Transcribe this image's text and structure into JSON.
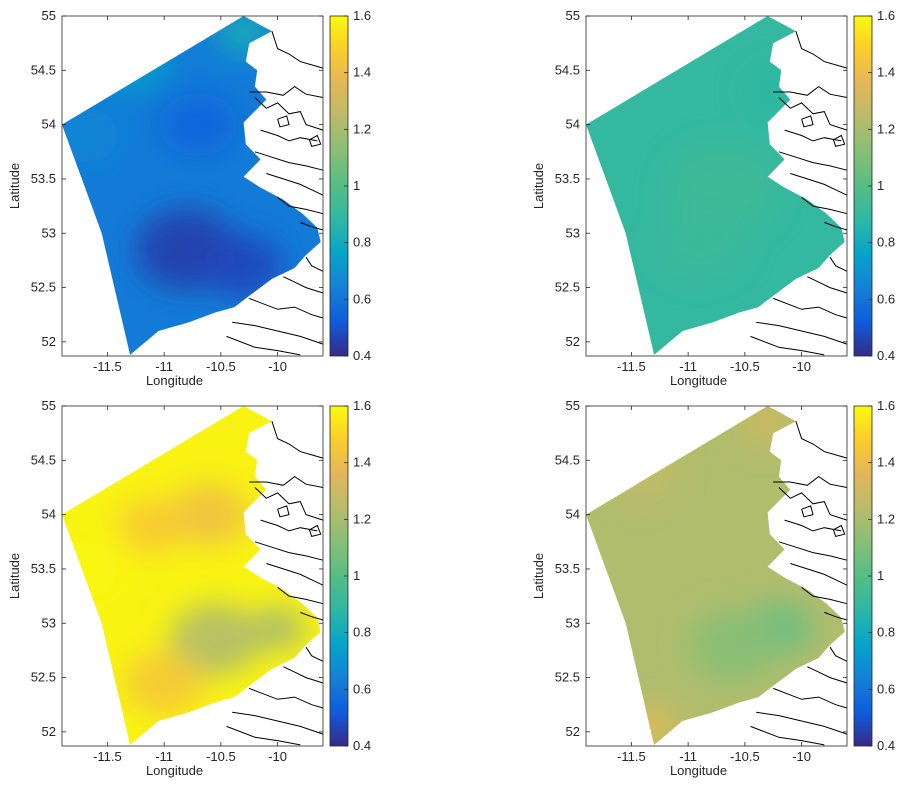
{
  "colorbar": {
    "colormap": "parula",
    "range": [
      0.4,
      1.6
    ],
    "ticks": [
      0.4,
      0.6,
      0.8,
      1,
      1.2,
      1.4,
      1.6
    ],
    "tick_labels": [
      "0.4",
      "0.6",
      "0.8",
      "1",
      "1.2",
      "1.4",
      "1.6"
    ]
  },
  "axes_style": {
    "x_ticks": [
      -11.5,
      -11,
      -10.5,
      -10
    ],
    "x_tick_labels": [
      "-11.5",
      "-11",
      "-10.5",
      "-10"
    ],
    "y_ticks": [
      52,
      52.5,
      53,
      53.5,
      54,
      54.5,
      55
    ],
    "y_tick_labels": [
      "52",
      "52.5",
      "53",
      "53.5",
      "54",
      "54.5",
      "55"
    ],
    "grid": false
  },
  "chart_data": [
    {
      "type": "heatmap",
      "title": "",
      "xlabel": "Longitude",
      "ylabel": "Latitude",
      "xlim": [
        -11.9,
        -9.6
      ],
      "ylim": [
        51.87,
        55.0
      ],
      "value_range": [
        0.45,
        0.85
      ],
      "base_value": 0.62,
      "patterns": [
        {
          "lon": -10.8,
          "lat": 52.85,
          "r": 0.45,
          "value": 0.45
        },
        {
          "lon": -10.3,
          "lat": 52.7,
          "r": 0.35,
          "value": 0.47
        },
        {
          "lon": -10.7,
          "lat": 54.0,
          "r": 0.35,
          "value": 0.55
        },
        {
          "lon": -11.3,
          "lat": 54.6,
          "r": 0.35,
          "value": 0.75
        },
        {
          "lon": -10.3,
          "lat": 54.85,
          "r": 0.25,
          "value": 0.82
        },
        {
          "lon": -11.7,
          "lat": 53.9,
          "r": 0.3,
          "value": 0.66
        }
      ]
    },
    {
      "type": "heatmap",
      "title": "",
      "xlabel": "Longitude",
      "ylabel": "Latitude",
      "xlim": [
        -11.9,
        -9.6
      ],
      "ylim": [
        51.87,
        55.0
      ],
      "value_range": [
        0.85,
        1.0
      ],
      "base_value": 0.9,
      "patterns": [
        {
          "lon": -10.7,
          "lat": 53.4,
          "r": 0.5,
          "value": 0.93
        },
        {
          "lon": -10.9,
          "lat": 52.9,
          "r": 0.4,
          "value": 0.92
        },
        {
          "lon": -10.2,
          "lat": 54.3,
          "r": 0.3,
          "value": 0.88
        }
      ]
    },
    {
      "type": "heatmap",
      "title": "",
      "xlabel": "Longitude",
      "ylabel": "Latitude",
      "xlim": [
        -11.9,
        -9.6
      ],
      "ylim": [
        51.87,
        55.0
      ],
      "value_range": [
        1.15,
        1.6
      ],
      "base_value": 1.58,
      "patterns": [
        {
          "lon": -10.55,
          "lat": 52.85,
          "r": 0.4,
          "value": 1.22
        },
        {
          "lon": -10.0,
          "lat": 52.95,
          "r": 0.25,
          "value": 1.2
        },
        {
          "lon": -11.0,
          "lat": 52.45,
          "r": 0.35,
          "value": 1.45
        },
        {
          "lon": -10.6,
          "lat": 54.0,
          "r": 0.35,
          "value": 1.42
        },
        {
          "lon": -11.1,
          "lat": 53.9,
          "r": 0.3,
          "value": 1.46
        },
        {
          "lon": -11.7,
          "lat": 53.5,
          "r": 0.3,
          "value": 1.59
        }
      ]
    },
    {
      "type": "heatmap",
      "title": "",
      "xlabel": "Longitude",
      "ylabel": "Latitude",
      "xlim": [
        -11.9,
        -9.6
      ],
      "ylim": [
        51.87,
        55.0
      ],
      "value_range": [
        1.0,
        1.4
      ],
      "base_value": 1.22,
      "patterns": [
        {
          "lon": -10.2,
          "lat": 52.95,
          "r": 0.3,
          "value": 1.05
        },
        {
          "lon": -10.6,
          "lat": 52.8,
          "r": 0.4,
          "value": 1.12
        },
        {
          "lon": -11.3,
          "lat": 52.05,
          "r": 0.2,
          "value": 1.38
        },
        {
          "lon": -10.3,
          "lat": 54.85,
          "r": 0.25,
          "value": 1.3
        },
        {
          "lon": -11.4,
          "lat": 54.4,
          "r": 0.3,
          "value": 1.27
        }
      ]
    }
  ]
}
